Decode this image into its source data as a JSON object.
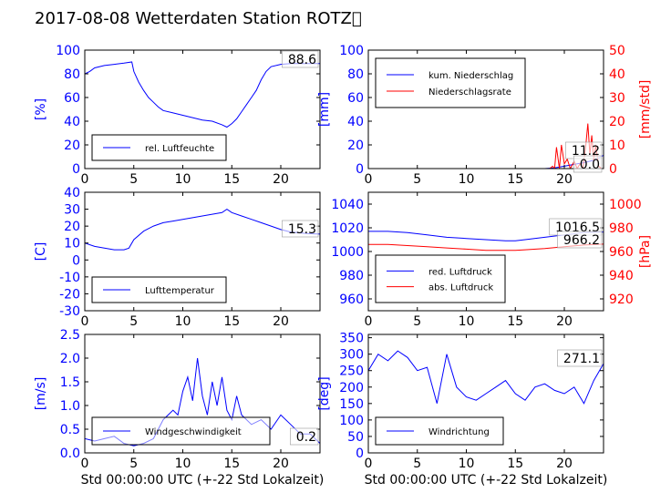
{
  "title": "2017-08-08 Wetterdaten Station ROTZ\u0000",
  "colors": {
    "primary": "#0000ff",
    "secondary": "#ff0000",
    "axis": "#000000"
  },
  "chart_data": [
    {
      "id": "humidity",
      "type": "line",
      "ylabel": "[%]",
      "xlabel": "",
      "xlim": [
        0,
        24
      ],
      "ylim": [
        0,
        100
      ],
      "xticks": [
        0,
        5,
        10,
        15,
        20
      ],
      "yticks": [
        0,
        20,
        40,
        60,
        80,
        100
      ],
      "legend": "bottom-left",
      "series": [
        {
          "name": "rel. Luftfeuchte",
          "color": "#0000ff",
          "last_label": "88.6",
          "x": [
            0,
            0.5,
            1,
            2,
            3,
            4,
            4.8,
            5,
            5.5,
            6,
            6.5,
            7,
            7.5,
            8,
            9,
            10,
            11,
            12,
            13,
            14,
            14.5,
            15,
            15.5,
            16,
            16.5,
            17,
            17.5,
            18,
            18.5,
            19,
            20,
            21,
            22,
            23,
            24
          ],
          "y": [
            80,
            82,
            85,
            87,
            88,
            89,
            90,
            82,
            73,
            66,
            60,
            56,
            52,
            49,
            47,
            45,
            43,
            41,
            40,
            37,
            35,
            38,
            42,
            48,
            54,
            60,
            66,
            75,
            82,
            86,
            88,
            88.6,
            88.6,
            88.6,
            88.6
          ]
        }
      ]
    },
    {
      "id": "precip",
      "type": "line",
      "ylabel": "[mm]",
      "ylabel2": "[mm/std]",
      "xlim": [
        0,
        24
      ],
      "ylim": [
        0,
        100
      ],
      "ylim2": [
        0,
        50
      ],
      "xticks": [
        0,
        5,
        10,
        15,
        20
      ],
      "yticks": [
        0,
        20,
        40,
        60,
        80,
        100
      ],
      "yticks2": [
        0,
        10,
        20,
        30,
        40,
        50
      ],
      "legend": "top-left",
      "series": [
        {
          "name": "kum. Niederschlag",
          "color": "#0000ff",
          "axis": "left",
          "last_label": "11.2",
          "x": [
            0,
            18,
            19,
            20,
            21,
            22,
            23,
            24
          ],
          "y": [
            0,
            0,
            0.5,
            2,
            3.5,
            5,
            7,
            11.2
          ]
        },
        {
          "name": "Niederschlagsrate",
          "color": "#ff0000",
          "axis": "right",
          "last_label": "0.0",
          "x": [
            0,
            18.5,
            18.8,
            19,
            19.2,
            19.5,
            19.7,
            20,
            20.3,
            20.6,
            21,
            21.3,
            21.6,
            21.9,
            22.2,
            22.4,
            22.6,
            22.8,
            23,
            23.2,
            23.5,
            23.8,
            24
          ],
          "y": [
            0,
            0,
            1,
            0,
            9,
            0,
            10,
            2,
            4,
            0,
            3,
            0,
            2,
            0,
            10,
            19,
            6,
            14,
            3,
            10,
            1,
            0,
            0
          ]
        }
      ]
    },
    {
      "id": "temperature",
      "type": "line",
      "ylabel": "[C]",
      "xlim": [
        0,
        24
      ],
      "ylim": [
        -30,
        40
      ],
      "xticks": [
        0,
        5,
        10,
        15,
        20
      ],
      "yticks": [
        -30,
        -20,
        -10,
        0,
        10,
        20,
        30,
        40
      ],
      "legend": "bottom-left",
      "series": [
        {
          "name": "Lufttemperatur",
          "color": "#0000ff",
          "last_label": "15.3",
          "x": [
            0,
            1,
            2,
            3,
            4,
            4.5,
            5,
            6,
            7,
            8,
            9,
            10,
            11,
            12,
            13,
            14,
            14.5,
            15,
            16,
            17,
            18,
            19,
            20,
            21,
            22,
            23,
            24
          ],
          "y": [
            10,
            8,
            7,
            6,
            6,
            7,
            12,
            17,
            20,
            22,
            23,
            24,
            25,
            26,
            27,
            28,
            30,
            28,
            26,
            24,
            22,
            20,
            18,
            16.5,
            16,
            15.5,
            15.3
          ]
        }
      ]
    },
    {
      "id": "pressure",
      "type": "line",
      "ylabel2": "[hPa]",
      "xlim": [
        0,
        24
      ],
      "ylim": [
        950,
        1050
      ],
      "ylim2": [
        910,
        1010
      ],
      "xticks": [
        0,
        5,
        10,
        15,
        20
      ],
      "yticks": [
        960,
        980,
        1000,
        1020,
        1040
      ],
      "yticks2": [
        920,
        940,
        960,
        980,
        1000
      ],
      "legend": "bottom-left",
      "series": [
        {
          "name": "red. Luftdruck",
          "color": "#0000ff",
          "axis": "left",
          "last_label": "1016.5",
          "x": [
            0,
            2,
            4,
            6,
            8,
            10,
            12,
            14,
            15,
            16,
            18,
            20,
            22,
            24
          ],
          "y": [
            1017,
            1017,
            1016,
            1014,
            1012,
            1011,
            1010,
            1009,
            1009,
            1010,
            1012,
            1014,
            1016,
            1016.5
          ]
        },
        {
          "name": "abs. Luftdruck",
          "color": "#ff0000",
          "axis": "right",
          "last_label": "966.2",
          "x": [
            0,
            2,
            4,
            6,
            8,
            10,
            12,
            14,
            15,
            16,
            18,
            20,
            22,
            24
          ],
          "y": [
            966,
            966,
            965,
            964,
            963,
            962,
            961,
            961,
            961,
            961.5,
            962.5,
            964,
            965.5,
            966.2
          ]
        }
      ]
    },
    {
      "id": "wind-speed",
      "type": "line",
      "ylabel": "[m/s]",
      "xlabel": "Std 00:00:00 UTC (+-22 Std Lokalzeit)",
      "xlim": [
        0,
        24
      ],
      "ylim": [
        0,
        2.5
      ],
      "xticks": [
        0,
        5,
        10,
        15,
        20
      ],
      "yticks": [
        0.0,
        0.5,
        1.0,
        1.5,
        2.0,
        2.5
      ],
      "legend": "bottom-left",
      "series": [
        {
          "name": "Windgeschwindigkeit",
          "color": "#0000ff",
          "last_label": "0.2",
          "x": [
            0,
            1,
            2,
            3,
            4,
            5,
            6,
            7,
            8,
            9,
            9.5,
            10,
            10.5,
            11,
            11.5,
            12,
            12.5,
            13,
            13.5,
            14,
            14.5,
            15,
            15.5,
            16,
            17,
            18,
            19,
            20,
            21,
            22,
            23,
            24
          ],
          "y": [
            0.3,
            0.25,
            0.3,
            0.35,
            0.2,
            0.15,
            0.2,
            0.3,
            0.7,
            0.9,
            0.8,
            1.3,
            1.6,
            1.1,
            2.0,
            1.2,
            0.8,
            1.5,
            1.0,
            1.6,
            0.9,
            0.7,
            1.2,
            0.8,
            0.6,
            0.7,
            0.5,
            0.8,
            0.6,
            0.4,
            0.4,
            0.2
          ]
        }
      ]
    },
    {
      "id": "wind-direction",
      "type": "line",
      "ylabel": "[deg]",
      "xlabel": "Std 00:00:00 UTC (+-22 Std Lokalzeit)",
      "xlim": [
        0,
        24
      ],
      "ylim": [
        0,
        360
      ],
      "xticks": [
        0,
        5,
        10,
        15,
        20
      ],
      "yticks": [
        0,
        50,
        100,
        150,
        200,
        250,
        300,
        350
      ],
      "legend": "bottom-left",
      "series": [
        {
          "name": "Windrichtung",
          "color": "#0000ff",
          "last_label": "271.1",
          "x": [
            0,
            1,
            2,
            3,
            4,
            5,
            6,
            7,
            8,
            9,
            10,
            11,
            12,
            13,
            14,
            15,
            16,
            17,
            18,
            19,
            20,
            21,
            22,
            23,
            24
          ],
          "y": [
            250,
            300,
            280,
            310,
            290,
            250,
            260,
            150,
            300,
            200,
            170,
            160,
            180,
            200,
            220,
            180,
            160,
            200,
            210,
            190,
            180,
            200,
            150,
            220,
            271.1
          ]
        }
      ]
    }
  ]
}
